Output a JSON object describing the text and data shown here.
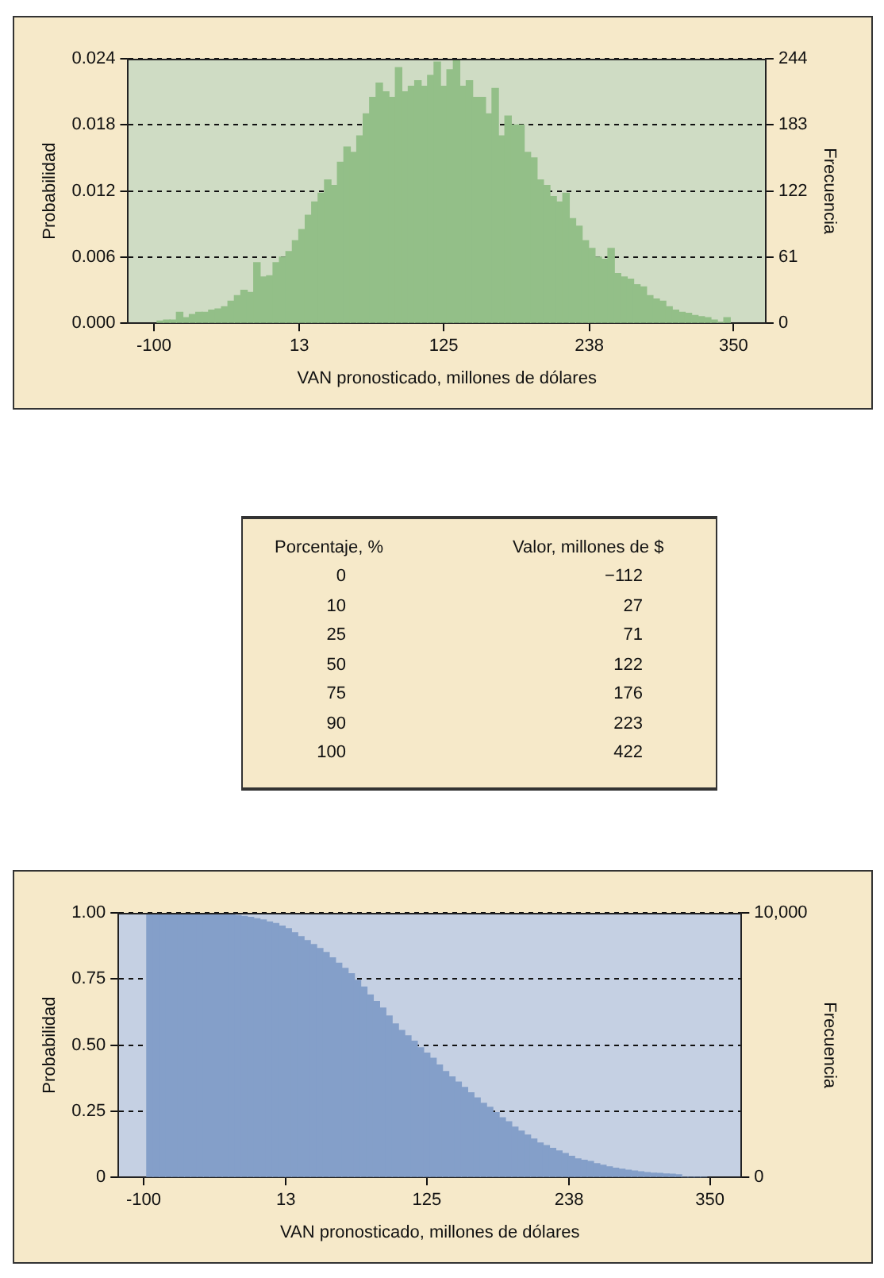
{
  "chart_data": [
    {
      "type": "histogram",
      "xlabel": "VAN pronosticado, millones de dólares",
      "ylabel": "Probabilidad",
      "y2label": "Frecuencia",
      "bins": [
        -97.5,
        -92.5,
        -87.5,
        -82.5,
        -77.5,
        -72.5,
        -67.5,
        -62.5,
        -57.5,
        -52.5,
        -47.5,
        -42.5,
        -37.5,
        -32.5,
        -27.5,
        -22.5,
        -17.5,
        -12.5,
        -7.5,
        -2.5,
        2.5,
        7.5,
        12.5,
        17.5,
        22.5,
        27.5,
        32.5,
        37.5,
        42.5,
        47.5,
        52.5,
        57.5,
        62.5,
        67.5,
        72.5,
        77.5,
        82.5,
        87.5,
        92.5,
        97.5,
        102.5,
        107.5,
        112.5,
        117.5,
        122.5,
        127.5,
        132.5,
        137.5,
        142.5,
        147.5,
        152.5,
        157.5,
        162.5,
        167.5,
        172.5,
        177.5,
        182.5,
        187.5,
        192.5,
        197.5,
        202.5,
        207.5,
        212.5,
        217.5,
        222.5,
        227.5,
        232.5,
        237.5,
        242.5,
        247.5,
        252.5,
        257.5,
        262.5,
        267.5,
        272.5,
        277.5,
        282.5,
        287.5,
        292.5,
        297.5,
        302.5,
        307.5,
        312.5,
        317.5,
        322.5,
        327.5,
        332.5,
        337.5,
        342.5,
        347.5
      ],
      "values": [
        0.0002,
        0.0003,
        0.0003,
        0.001,
        0.0005,
        0.0008,
        0.001,
        0.001,
        0.0012,
        0.0013,
        0.0015,
        0.002,
        0.0025,
        0.003,
        0.0028,
        0.0055,
        0.0042,
        0.0043,
        0.0055,
        0.006,
        0.0065,
        0.0075,
        0.0085,
        0.0098,
        0.011,
        0.0118,
        0.013,
        0.0125,
        0.0146,
        0.016,
        0.0155,
        0.017,
        0.019,
        0.0205,
        0.0218,
        0.021,
        0.0205,
        0.0232,
        0.021,
        0.0215,
        0.022,
        0.0215,
        0.0225,
        0.0237,
        0.0215,
        0.023,
        0.024,
        0.0215,
        0.022,
        0.0205,
        0.0205,
        0.019,
        0.0213,
        0.017,
        0.0188,
        0.018,
        0.018,
        0.0155,
        0.015,
        0.013,
        0.0125,
        0.0115,
        0.011,
        0.0118,
        0.0095,
        0.0088,
        0.0075,
        0.0068,
        0.006,
        0.0058,
        0.0068,
        0.0045,
        0.0042,
        0.004,
        0.0035,
        0.0033,
        0.0025,
        0.0022,
        0.002,
        0.0015,
        0.0012,
        0.001,
        0.0009,
        0.0007,
        0.0006,
        0.0005,
        0.0003,
        0.0001,
        0.0005
      ],
      "color": "#93bf88",
      "xlim": [
        -120,
        375
      ],
      "xticks": [
        -100,
        13,
        125,
        238,
        350
      ],
      "ylim": [
        0,
        0.024
      ],
      "yticks": [
        {
          "value": 0,
          "label": "0.000"
        },
        0.006,
        0.012,
        0.018,
        0.024
      ],
      "y2lim": [
        0,
        244
      ],
      "y2ticks": [
        0,
        61,
        122,
        183,
        244
      ],
      "grid": "y"
    },
    {
      "type": "other",
      "annotations": [
        "Porcentaje, %",
        "Valor, millones de $"
      ],
      "categories": [
        "0",
        "10",
        "25",
        "50",
        "75",
        "90",
        "100"
      ],
      "values": [
        -112,
        27,
        71,
        122,
        176,
        223,
        422
      ],
      "data_labels": true
    },
    {
      "type": "histogram",
      "xlabel": "VAN pronosticado, millones de dólares",
      "ylabel": "Probabilidad",
      "y2label": "Frecuencia",
      "bins": [
        -97.5,
        -92.5,
        -87.5,
        -82.5,
        -77.5,
        -72.5,
        -67.5,
        -62.5,
        -57.5,
        -52.5,
        -47.5,
        -42.5,
        -37.5,
        -32.5,
        -27.5,
        -22.5,
        -17.5,
        -12.5,
        -7.5,
        -2.5,
        2.5,
        7.5,
        12.5,
        17.5,
        22.5,
        27.5,
        32.5,
        37.5,
        42.5,
        47.5,
        52.5,
        57.5,
        62.5,
        67.5,
        72.5,
        77.5,
        82.5,
        87.5,
        92.5,
        97.5,
        102.5,
        107.5,
        112.5,
        117.5,
        122.5,
        127.5,
        132.5,
        137.5,
        142.5,
        147.5,
        152.5,
        157.5,
        162.5,
        167.5,
        172.5,
        177.5,
        182.5,
        187.5,
        192.5,
        197.5,
        202.5,
        207.5,
        212.5,
        217.5,
        222.5,
        227.5,
        232.5,
        237.5,
        242.5,
        247.5,
        252.5,
        257.5,
        262.5,
        267.5,
        272.5,
        277.5,
        282.5,
        287.5,
        292.5,
        297.5,
        302.5,
        307.5,
        312.5,
        317.5,
        322.5,
        327.5,
        332.5,
        337.5,
        342.5,
        347.5
      ],
      "values": [
        1.0,
        1.0,
        1.0,
        1.0,
        1.0,
        1.0,
        0.999,
        0.999,
        0.998,
        0.998,
        0.997,
        0.996,
        0.995,
        0.993,
        0.99,
        0.987,
        0.983,
        0.978,
        0.973,
        0.966,
        0.96,
        0.95,
        0.94,
        0.925,
        0.91,
        0.895,
        0.88,
        0.865,
        0.85,
        0.83,
        0.81,
        0.79,
        0.77,
        0.745,
        0.72,
        0.69,
        0.665,
        0.64,
        0.61,
        0.58,
        0.555,
        0.535,
        0.515,
        0.49,
        0.47,
        0.45,
        0.425,
        0.4,
        0.38,
        0.36,
        0.34,
        0.32,
        0.3,
        0.28,
        0.265,
        0.245,
        0.225,
        0.21,
        0.19,
        0.175,
        0.16,
        0.145,
        0.13,
        0.12,
        0.11,
        0.1,
        0.09,
        0.08,
        0.07,
        0.065,
        0.06,
        0.052,
        0.046,
        0.04,
        0.035,
        0.031,
        0.027,
        0.024,
        0.021,
        0.018,
        0.016,
        0.015,
        0.013,
        0.012,
        0.01,
        0,
        0,
        0,
        0
      ],
      "color": "#849fc9",
      "xlim": [
        -120,
        375
      ],
      "xticks": [
        -100,
        13,
        125,
        238,
        350
      ],
      "ylim": [
        0,
        1
      ],
      "yticks": [
        0,
        0.25,
        {
          "value": 0.5,
          "label": "0.50"
        },
        0.75,
        {
          "value": 1,
          "label": "1.00"
        }
      ],
      "y2lim": [
        0,
        10000
      ],
      "y2ticks": [
        0,
        {
          "value": 10000,
          "label": "10,000"
        }
      ],
      "grid": "y"
    }
  ]
}
